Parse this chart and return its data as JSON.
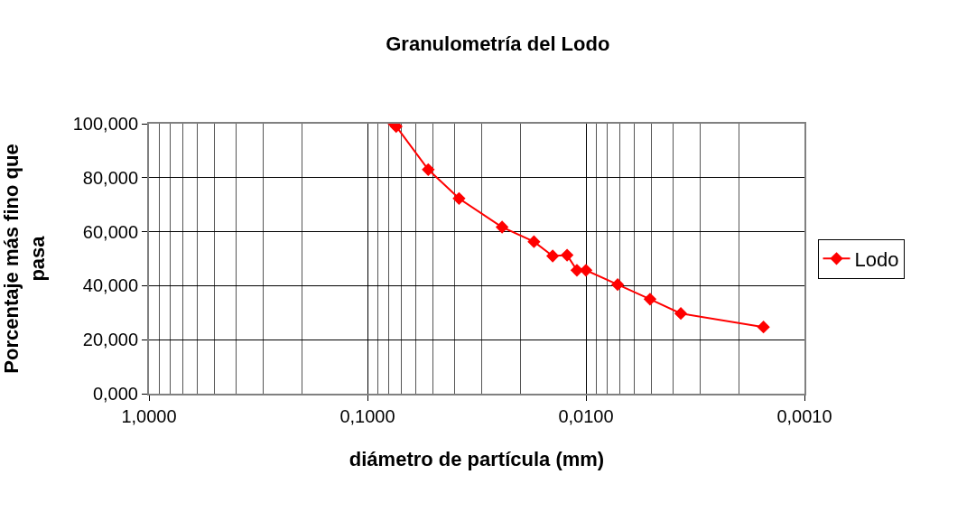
{
  "chart_data": {
    "type": "line",
    "title": "Granulometría del Lodo",
    "xlabel": "diámetro de partícula (mm)",
    "ylabel": "Porcentaje más fino que pasa",
    "log": "x",
    "grid": true,
    "legend": "right",
    "marker": "diamond",
    "line_style": "solid",
    "x": [
      0.0757,
      0.0739,
      0.0527,
      0.0381,
      0.0242,
      0.0173,
      0.0142,
      0.0122,
      0.011,
      0.01,
      0.00716,
      0.00509,
      0.00368,
      0.00154
    ],
    "series": [
      {
        "name": "Lodo",
        "color": "#ff0000",
        "values": [
          100,
          99,
          83,
          72.3,
          61.7,
          56.3,
          51,
          51.3,
          45.7,
          45.7,
          40.4,
          35,
          29.7,
          24.7
        ]
      }
    ],
    "xlim": [
      1,
      0.001
    ],
    "xticks": [
      {
        "value": 1,
        "label": "1,0000"
      },
      {
        "value": 0.1,
        "label": "0,1000"
      },
      {
        "value": 0.01,
        "label": "0,0100"
      },
      {
        "value": 0.001,
        "label": "0,0010"
      }
    ],
    "ylim": [
      0,
      100
    ],
    "yticks": [
      {
        "value": 0,
        "label": "0,000"
      },
      {
        "value": 20,
        "label": "20,000"
      },
      {
        "value": 40,
        "label": "40,000"
      },
      {
        "value": 60,
        "label": "60,000"
      },
      {
        "value": 80,
        "label": "80,000"
      },
      {
        "value": 100,
        "label": "100,000"
      }
    ]
  }
}
